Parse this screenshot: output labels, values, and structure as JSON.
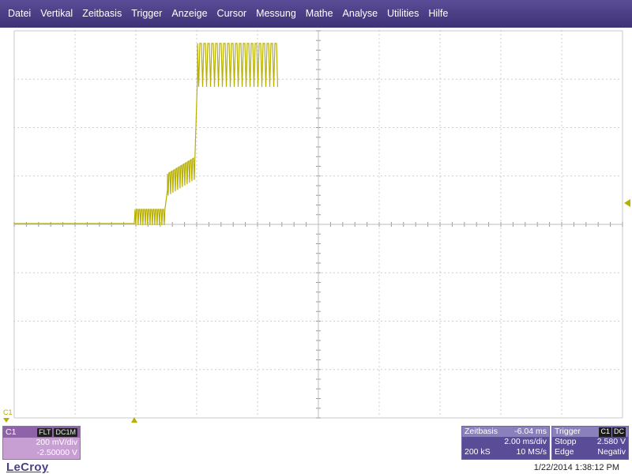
{
  "menu": [
    "Datei",
    "Vertikal",
    "Zeitbasis",
    "Trigger",
    "Anzeige",
    "Cursor",
    "Messung",
    "Mathe",
    "Analyse",
    "Utilities",
    "Hilfe"
  ],
  "channel": {
    "name": "C1",
    "marker_label": "C1",
    "tags": [
      "FLT",
      "DC1M"
    ],
    "scale": "200 mV/div",
    "offset": "-2.50000 V",
    "trace_color": "#b8b000"
  },
  "timebase": {
    "title": "Zeitbasis",
    "delay": "-6.04 ms",
    "scale": "2.00 ms/div",
    "samples": "200 kS",
    "rate": "10 MS/s"
  },
  "trigger": {
    "title": "Trigger",
    "badge": [
      "C1",
      "DC"
    ],
    "mode": "Stopp",
    "level": "2.580 V",
    "type": "Edge",
    "slope": "Negativ"
  },
  "brand": "LeCroy",
  "timestamp": "1/22/2014 1:38:12 PM",
  "colors": {
    "menubar": "#4a3d86",
    "grid": "#c8c8c8",
    "trace": "#b8b000",
    "panel": "#5a4c96"
  }
}
